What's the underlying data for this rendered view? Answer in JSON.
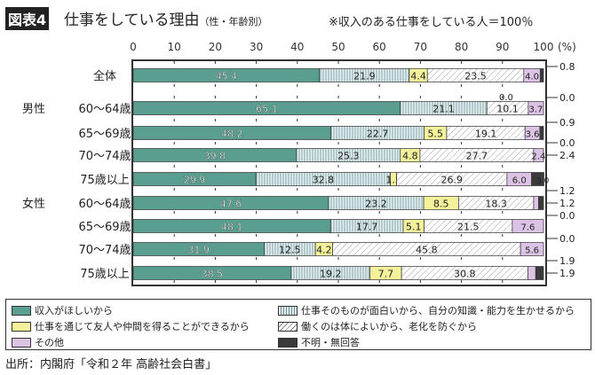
{
  "header": {
    "figure_label": "図表4",
    "title": "仕事をしている理由",
    "subtitle": "（性・年齢別）",
    "note": "※収入のある仕事をしている人＝100％"
  },
  "chart_data": {
    "type": "bar",
    "orientation": "horizontal",
    "stacked": true,
    "unit": "(%)",
    "xlim": [
      0,
      100
    ],
    "xticks": [
      "0",
      "10",
      "20",
      "30",
      "40",
      "50",
      "60",
      "70",
      "80",
      "90",
      "100"
    ],
    "grid": true,
    "legend_position": "bottom",
    "groups": [
      {
        "label": "",
        "rows": [
          0
        ]
      },
      {
        "label": "男性",
        "rows": [
          1,
          2,
          3,
          4
        ]
      },
      {
        "label": "女性",
        "rows": [
          5,
          6,
          7,
          8
        ]
      }
    ],
    "categories": [
      "全体",
      "60〜64歳",
      "65〜69歳",
      "70〜74歳",
      "75歳以上",
      "60〜64歳",
      "65〜69歳",
      "70〜74歳",
      "75歳以上"
    ],
    "series": [
      {
        "name": "収入がほしいから",
        "color": "#5a9e8f",
        "pattern": "solid",
        "values": [
          45.4,
          65.1,
          48.2,
          39.8,
          29.9,
          47.6,
          48.1,
          31.9,
          38.5
        ]
      },
      {
        "name": "仕事そのものが面白いから、自分の知識・能力を生かせるから",
        "color": "#e4f0f0",
        "pattern": "vertical-lines",
        "values": [
          21.9,
          21.1,
          22.7,
          25.3,
          32.8,
          23.2,
          17.7,
          12.5,
          19.2
        ]
      },
      {
        "name": "仕事を通じて友人や仲間を得ることができるから",
        "color": "#f3f19a",
        "pattern": "solid",
        "values": [
          4.4,
          0.0,
          5.5,
          4.8,
          1.5,
          8.5,
          5.1,
          4.2,
          7.7
        ]
      },
      {
        "name": "働くのは体によいから、老化を防ぐから",
        "color": "#ffffff",
        "pattern": "diagonal-lines",
        "values": [
          23.5,
          10.1,
          19.1,
          27.7,
          26.9,
          18.3,
          21.5,
          45.8,
          30.8
        ]
      },
      {
        "name": "その他",
        "color": "#dcc3e6",
        "pattern": "solid",
        "values": [
          4.0,
          3.7,
          3.6,
          2.4,
          6.0,
          1.2,
          7.6,
          5.6,
          1.9
        ]
      },
      {
        "name": "不明・無回答",
        "color": "#3a3a3a",
        "pattern": "solid",
        "values": [
          0.8,
          0.0,
          0.9,
          0.0,
          3.0,
          1.2,
          0.0,
          0.0,
          1.9
        ]
      }
    ],
    "labels": [
      [
        "45.4",
        "21.9",
        "4.4",
        "23.5",
        "4.0",
        "0.8"
      ],
      [
        "65.1",
        "21.1",
        "0.0",
        "10.1",
        "3.7",
        "0.0"
      ],
      [
        "48.2",
        "22.7",
        "5.5",
        "19.1",
        "3.6",
        "0.9"
      ],
      [
        "39.8",
        "25.3",
        "4.8",
        "27.7",
        "2.4",
        "0.0"
      ],
      [
        "29.9",
        "32.8",
        "1.5",
        "26.9",
        "6.0",
        "3.0"
      ],
      [
        "47.6",
        "23.2",
        "8.5",
        "18.3",
        "1.2",
        "1.2"
      ],
      [
        "48.1",
        "17.7",
        "5.1",
        "21.5",
        "7.6",
        "0.0"
      ],
      [
        "31.9",
        "12.5",
        "4.2",
        "45.8",
        "5.6",
        "0.0"
      ],
      [
        "38.5",
        "19.2",
        "7.7",
        "30.8",
        "1.9",
        "1.9"
      ]
    ]
  },
  "source": "出所：内閣府「令和２年 高齢社会白書」"
}
